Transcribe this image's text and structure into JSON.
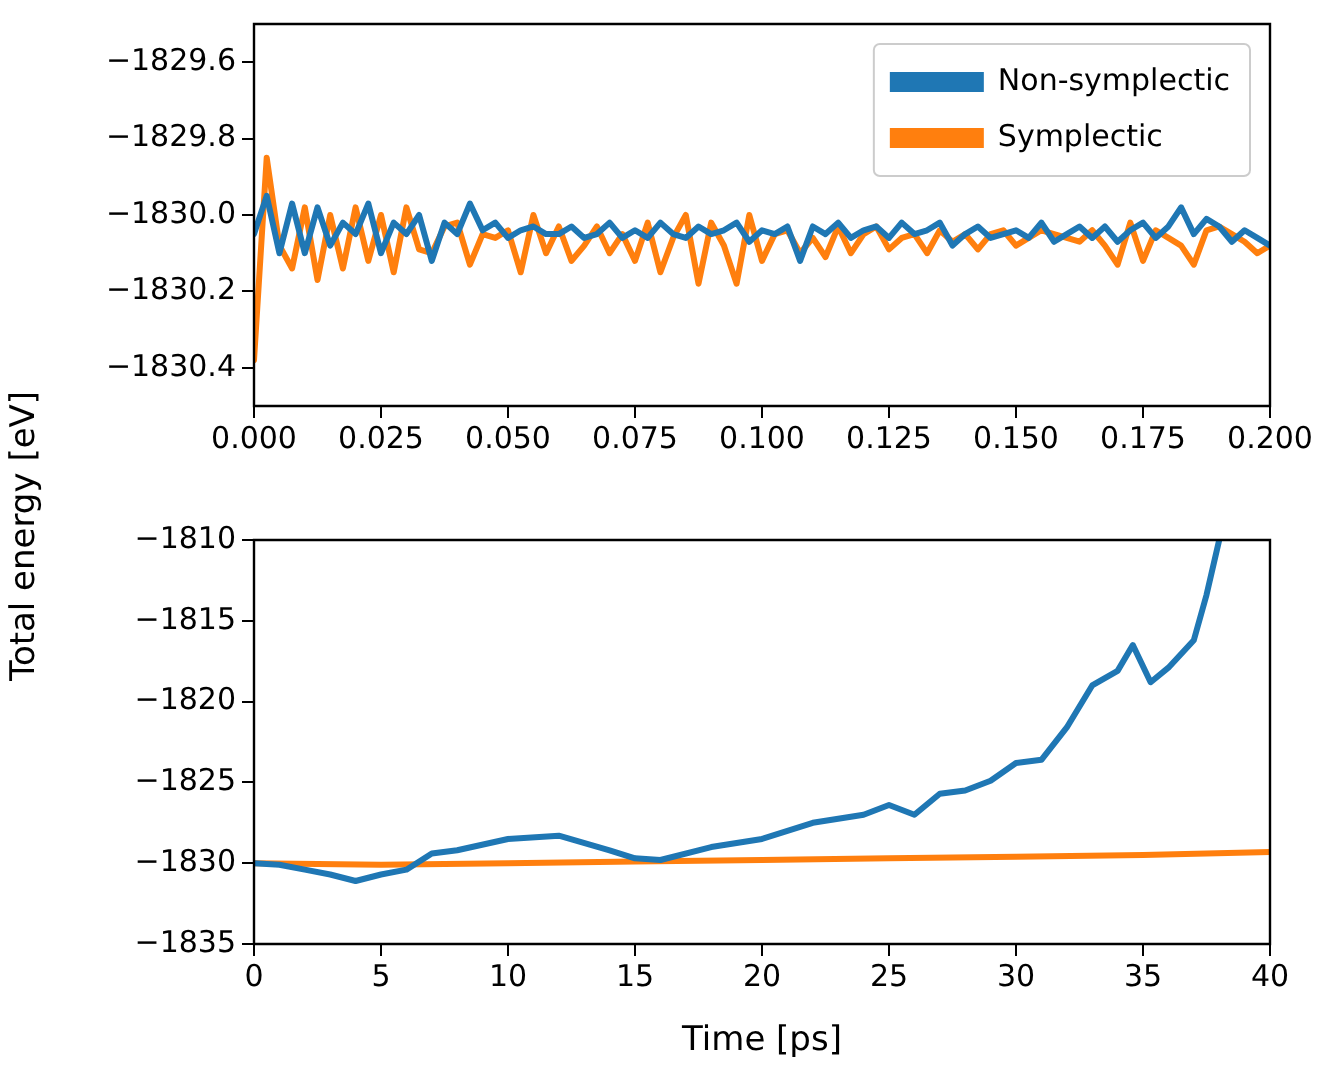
{
  "chart_data": [
    {
      "type": "line",
      "legend": "top right",
      "grid": false,
      "x": [
        0,
        0.0025,
        0.005,
        0.0075,
        0.01,
        0.0125,
        0.015,
        0.0175,
        0.02,
        0.0225,
        0.025,
        0.0275,
        0.03,
        0.0325,
        0.035,
        0.0375,
        0.04,
        0.0425,
        0.045,
        0.0475,
        0.05,
        0.0525,
        0.055,
        0.0575,
        0.06,
        0.0625,
        0.065,
        0.0675,
        0.07,
        0.0725,
        0.075,
        0.0775,
        0.08,
        0.0825,
        0.085,
        0.0875,
        0.09,
        0.0925,
        0.095,
        0.0975,
        0.1,
        0.1025,
        0.105,
        0.1075,
        0.11,
        0.1125,
        0.115,
        0.1175,
        0.12,
        0.1225,
        0.125,
        0.1275,
        0.13,
        0.1325,
        0.135,
        0.1375,
        0.14,
        0.1425,
        0.145,
        0.1475,
        0.15,
        0.1525,
        0.155,
        0.1575,
        0.16,
        0.1625,
        0.165,
        0.1675,
        0.17,
        0.1725,
        0.175,
        0.1775,
        0.18,
        0.1825,
        0.185,
        0.1875,
        0.19,
        0.1925,
        0.195,
        0.1975,
        0.2
      ],
      "xlim": [
        0,
        0.2
      ],
      "xticks": [
        {
          "value": 0,
          "label": "0.000"
        },
        {
          "value": 0.025,
          "label": "0.025"
        },
        {
          "value": 0.05,
          "label": "0.050"
        },
        {
          "value": 0.075,
          "label": "0.075"
        },
        {
          "value": 0.1,
          "label": "0.100"
        },
        {
          "value": 0.125,
          "label": "0.125"
        },
        {
          "value": 0.15,
          "label": "0.150"
        },
        {
          "value": 0.175,
          "label": "0.175"
        },
        {
          "value": 0.2,
          "label": "0.200"
        }
      ],
      "ylim": [
        -1830.5,
        -1829.5
      ],
      "yticks": [
        {
          "value": -1830.4,
          "label": "−1830.4"
        },
        {
          "value": -1830.2,
          "label": "−1830.2"
        },
        {
          "value": -1830.0,
          "label": "−1830.0"
        },
        {
          "value": -1829.8,
          "label": "−1829.8"
        },
        {
          "value": -1829.6,
          "label": "−1829.6"
        }
      ],
      "series": [
        {
          "name": "Non-symplectic",
          "color": "#1f77b4",
          "values": [
            -1830.05,
            -1829.95,
            -1830.1,
            -1829.97,
            -1830.1,
            -1829.98,
            -1830.08,
            -1830.02,
            -1830.05,
            -1829.97,
            -1830.1,
            -1830.02,
            -1830.05,
            -1830.0,
            -1830.12,
            -1830.02,
            -1830.05,
            -1829.97,
            -1830.04,
            -1830.02,
            -1830.06,
            -1830.04,
            -1830.03,
            -1830.05,
            -1830.05,
            -1830.03,
            -1830.06,
            -1830.05,
            -1830.02,
            -1830.06,
            -1830.04,
            -1830.06,
            -1830.02,
            -1830.05,
            -1830.06,
            -1830.03,
            -1830.05,
            -1830.04,
            -1830.02,
            -1830.07,
            -1830.04,
            -1830.05,
            -1830.03,
            -1830.12,
            -1830.03,
            -1830.05,
            -1830.02,
            -1830.06,
            -1830.04,
            -1830.03,
            -1830.06,
            -1830.02,
            -1830.05,
            -1830.04,
            -1830.02,
            -1830.08,
            -1830.05,
            -1830.03,
            -1830.06,
            -1830.05,
            -1830.04,
            -1830.06,
            -1830.02,
            -1830.07,
            -1830.05,
            -1830.03,
            -1830.06,
            -1830.03,
            -1830.07,
            -1830.04,
            -1830.02,
            -1830.06,
            -1830.03,
            -1829.98,
            -1830.05,
            -1830.01,
            -1830.03,
            -1830.07,
            -1830.04,
            -1830.06,
            -1830.08
          ]
        },
        {
          "name": "Symplectic",
          "color": "#ff7f0e",
          "values": [
            -1830.38,
            -1829.85,
            -1830.08,
            -1830.14,
            -1829.98,
            -1830.17,
            -1830.0,
            -1830.14,
            -1829.98,
            -1830.12,
            -1830.0,
            -1830.15,
            -1829.98,
            -1830.09,
            -1830.1,
            -1830.03,
            -1830.02,
            -1830.13,
            -1830.05,
            -1830.06,
            -1830.04,
            -1830.15,
            -1830.0,
            -1830.1,
            -1830.03,
            -1830.12,
            -1830.08,
            -1830.03,
            -1830.1,
            -1830.05,
            -1830.12,
            -1830.02,
            -1830.15,
            -1830.06,
            -1830.0,
            -1830.18,
            -1830.02,
            -1830.08,
            -1830.18,
            -1830.0,
            -1830.12,
            -1830.05,
            -1830.04,
            -1830.1,
            -1830.06,
            -1830.11,
            -1830.03,
            -1830.1,
            -1830.05,
            -1830.03,
            -1830.09,
            -1830.06,
            -1830.05,
            -1830.1,
            -1830.04,
            -1830.07,
            -1830.05,
            -1830.09,
            -1830.05,
            -1830.04,
            -1830.08,
            -1830.06,
            -1830.04,
            -1830.05,
            -1830.06,
            -1830.07,
            -1830.04,
            -1830.08,
            -1830.13,
            -1830.02,
            -1830.12,
            -1830.04,
            -1830.06,
            -1830.08,
            -1830.13,
            -1830.04,
            -1830.03,
            -1830.05,
            -1830.07,
            -1830.1,
            -1830.08
          ]
        }
      ]
    },
    {
      "type": "line",
      "grid": false,
      "xlabel": "Time [ps]",
      "ylabel": "Total energy [eV]",
      "xlim": [
        0,
        40
      ],
      "xticks": [
        0,
        5,
        10,
        15,
        20,
        25,
        30,
        35,
        40
      ],
      "ylim": [
        -1835,
        -1810
      ],
      "yticks": [
        -1835,
        -1830,
        -1825,
        -1820,
        -1815,
        -1810
      ],
      "series": [
        {
          "color": "#1f77b4",
          "x": [
            0,
            1,
            2,
            3,
            4,
            5,
            6,
            7,
            8,
            10,
            12,
            14,
            15,
            16,
            18,
            20,
            22,
            24,
            25,
            26,
            27,
            28,
            29,
            30,
            31,
            32,
            33,
            34,
            34.6,
            35.3,
            36,
            37,
            37.5,
            38
          ],
          "values": [
            -1830,
            -1830.1,
            -1830.4,
            -1830.7,
            -1831.1,
            -1830.7,
            -1830.4,
            -1829.4,
            -1829.2,
            -1828.5,
            -1828.3,
            -1829.2,
            -1829.7,
            -1829.8,
            -1829.0,
            -1828.5,
            -1827.5,
            -1827.0,
            -1826.4,
            -1827.0,
            -1825.7,
            -1825.5,
            -1824.9,
            -1823.8,
            -1823.6,
            -1821.6,
            -1819.0,
            -1818.1,
            -1816.5,
            -1818.8,
            -1817.9,
            -1816.2,
            -1813.4,
            -1810
          ]
        },
        {
          "color": "#ff7f0e",
          "x": [
            0,
            5,
            10,
            15,
            20,
            25,
            30,
            35,
            40
          ],
          "values": [
            -1830,
            -1830.1,
            -1830,
            -1829.9,
            -1829.8,
            -1829.7,
            -1829.6,
            -1829.5,
            -1829.3
          ]
        }
      ]
    }
  ]
}
